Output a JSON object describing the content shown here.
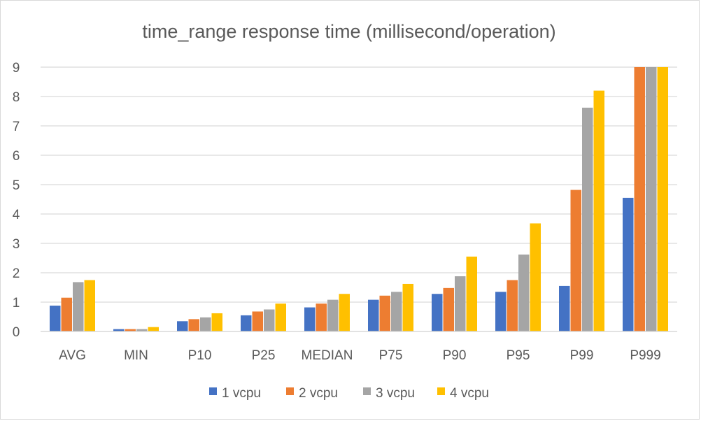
{
  "chart_data": {
    "type": "bar",
    "title": "time_range response time (millisecond/operation)",
    "xlabel": "",
    "ylabel": "",
    "ylim": [
      0,
      9
    ],
    "yticks": [
      "0",
      "1",
      "2",
      "3",
      "4",
      "5",
      "6",
      "7",
      "8",
      "9"
    ],
    "grid": true,
    "legend_position": "bottom",
    "categories": [
      "AVG",
      "MIN",
      "P10",
      "P25",
      "MEDIAN",
      "P75",
      "P90",
      "P95",
      "P99",
      "P999"
    ],
    "series": [
      {
        "name": "1 vcpu",
        "color": "#4472C4",
        "values": [
          0.88,
          0.08,
          0.35,
          0.55,
          0.82,
          1.08,
          1.28,
          1.35,
          1.55,
          4.55
        ]
      },
      {
        "name": "2 vcpu",
        "color": "#ED7D31",
        "values": [
          1.15,
          0.08,
          0.42,
          0.68,
          0.95,
          1.22,
          1.48,
          1.75,
          4.82,
          9.0
        ]
      },
      {
        "name": "3 vcpu",
        "color": "#A5A5A5",
        "values": [
          1.68,
          0.08,
          0.48,
          0.75,
          1.08,
          1.35,
          1.88,
          2.62,
          7.62,
          9.0
        ]
      },
      {
        "name": "4 vcpu",
        "color": "#FFC000",
        "values": [
          1.75,
          0.15,
          0.62,
          0.95,
          1.28,
          1.62,
          2.55,
          3.68,
          8.2,
          9.0
        ]
      }
    ]
  }
}
